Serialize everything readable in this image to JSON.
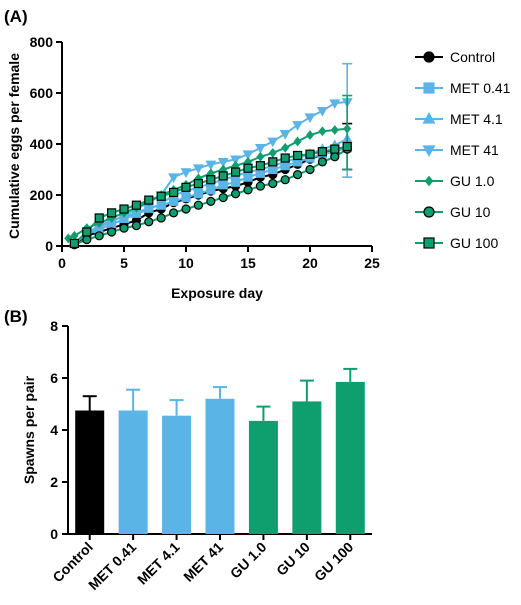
{
  "panel_labels": {
    "a": "(A)",
    "b": "(B)"
  },
  "chart_data": [
    {
      "type": "line",
      "xlabel": "Exposure day",
      "ylabel": "Cumulative eggs per female",
      "xlim": [
        0,
        25
      ],
      "ylim": [
        0,
        800
      ],
      "xticks": [
        0,
        5,
        10,
        15,
        20,
        25
      ],
      "yticks": [
        0,
        200,
        400,
        600,
        800
      ],
      "legend_position": "right",
      "series": [
        {
          "name": "Control",
          "color": "#000000",
          "marker": "circle",
          "x": [
            1,
            2,
            3,
            4,
            5,
            6,
            7,
            8,
            9,
            10,
            11,
            12,
            13,
            14,
            15,
            16,
            17,
            18,
            19,
            20,
            21,
            22,
            23
          ],
          "y": [
            8,
            40,
            55,
            70,
            85,
            100,
            130,
            145,
            170,
            185,
            200,
            215,
            225,
            235,
            250,
            270,
            280,
            300,
            320,
            340,
            360,
            375,
            385
          ],
          "error_end": {
            "x": 23,
            "y": 385,
            "upper": 480,
            "lower": 300
          }
        },
        {
          "name": "MET 0.41",
          "color": "#5ab4e5",
          "marker": "square",
          "x": [
            1,
            2,
            3,
            4,
            5,
            6,
            7,
            8,
            9,
            10,
            11,
            12,
            13,
            14,
            15,
            16,
            17,
            18,
            19,
            20,
            21,
            22,
            23
          ],
          "y": [
            10,
            50,
            80,
            100,
            115,
            130,
            150,
            160,
            175,
            190,
            205,
            220,
            240,
            250,
            270,
            285,
            300,
            315,
            330,
            345,
            360,
            370,
            385
          ],
          "error_end": null
        },
        {
          "name": "MET 4.1",
          "color": "#5ab4e5",
          "marker": "triangle-up",
          "x": [
            1,
            2,
            3,
            4,
            5,
            6,
            7,
            8,
            9,
            10,
            11,
            12,
            13,
            14,
            15,
            16,
            17,
            18,
            19,
            20,
            21,
            22,
            23
          ],
          "y": [
            10,
            45,
            65,
            85,
            105,
            125,
            145,
            165,
            200,
            215,
            230,
            245,
            260,
            275,
            290,
            300,
            315,
            330,
            345,
            360,
            380,
            395,
            420
          ],
          "error_end": null
        },
        {
          "name": "MET 41",
          "color": "#5ab4e5",
          "marker": "triangle-down",
          "x": [
            1,
            2,
            3,
            4,
            5,
            6,
            7,
            8,
            9,
            10,
            11,
            12,
            13,
            14,
            15,
            16,
            17,
            18,
            19,
            20,
            21,
            22,
            23
          ],
          "y": [
            10,
            50,
            75,
            95,
            120,
            145,
            170,
            200,
            270,
            290,
            305,
            320,
            330,
            340,
            360,
            385,
            410,
            440,
            475,
            505,
            530,
            560,
            565
          ],
          "error_end": {
            "x": 23,
            "y": 565,
            "upper": 715,
            "lower": 270
          }
        },
        {
          "name": "GU 1.0",
          "color": "#0f9e6e",
          "marker": "diamond",
          "x": [
            0.5,
            1,
            2,
            3,
            4,
            5,
            6,
            7,
            8,
            9,
            10,
            11,
            12,
            13,
            14,
            15,
            16,
            17,
            18,
            19,
            20,
            21,
            22,
            23
          ],
          "y": [
            30,
            40,
            70,
            90,
            110,
            130,
            150,
            175,
            200,
            220,
            240,
            265,
            285,
            300,
            315,
            330,
            350,
            365,
            385,
            410,
            435,
            450,
            455,
            460
          ],
          "error_end": {
            "x": 23,
            "y": 460,
            "upper": 590,
            "lower": 300
          }
        },
        {
          "name": "GU 10",
          "color": "#0f9e6e",
          "marker": "circle",
          "x": [
            1,
            2,
            3,
            4,
            5,
            6,
            7,
            8,
            9,
            10,
            11,
            12,
            13,
            14,
            15,
            16,
            17,
            18,
            19,
            20,
            21,
            22,
            23
          ],
          "y": [
            5,
            25,
            40,
            55,
            70,
            80,
            95,
            110,
            130,
            145,
            160,
            175,
            190,
            205,
            220,
            235,
            245,
            260,
            280,
            300,
            330,
            350,
            380
          ],
          "error_end": null
        },
        {
          "name": "GU 100",
          "color": "#0f9e6e",
          "marker": "square",
          "x": [
            1,
            2,
            3,
            4,
            5,
            6,
            7,
            8,
            9,
            10,
            11,
            12,
            13,
            14,
            15,
            16,
            17,
            18,
            19,
            20,
            21,
            22,
            23
          ],
          "y": [
            10,
            55,
            110,
            130,
            145,
            160,
            180,
            195,
            210,
            230,
            245,
            260,
            275,
            290,
            305,
            315,
            330,
            345,
            355,
            360,
            370,
            380,
            390
          ],
          "error_end": null
        }
      ]
    },
    {
      "type": "bar",
      "ylabel": "Spawns per pair",
      "xlabel": "",
      "ylim": [
        0,
        8
      ],
      "yticks": [
        0,
        2,
        4,
        6,
        8
      ],
      "categories": [
        "Control",
        "MET 0.41",
        "MET 4.1",
        "MET 41",
        "GU 1.0",
        "GU 10",
        "GU 100"
      ],
      "values": [
        4.75,
        4.75,
        4.55,
        5.2,
        4.35,
        5.1,
        5.85
      ],
      "errors": [
        0.55,
        0.8,
        0.6,
        0.45,
        0.55,
        0.8,
        0.5
      ],
      "colors": [
        "#000000",
        "#5ab4e5",
        "#5ab4e5",
        "#5ab4e5",
        "#0f9e6e",
        "#0f9e6e",
        "#0f9e6e"
      ]
    }
  ]
}
